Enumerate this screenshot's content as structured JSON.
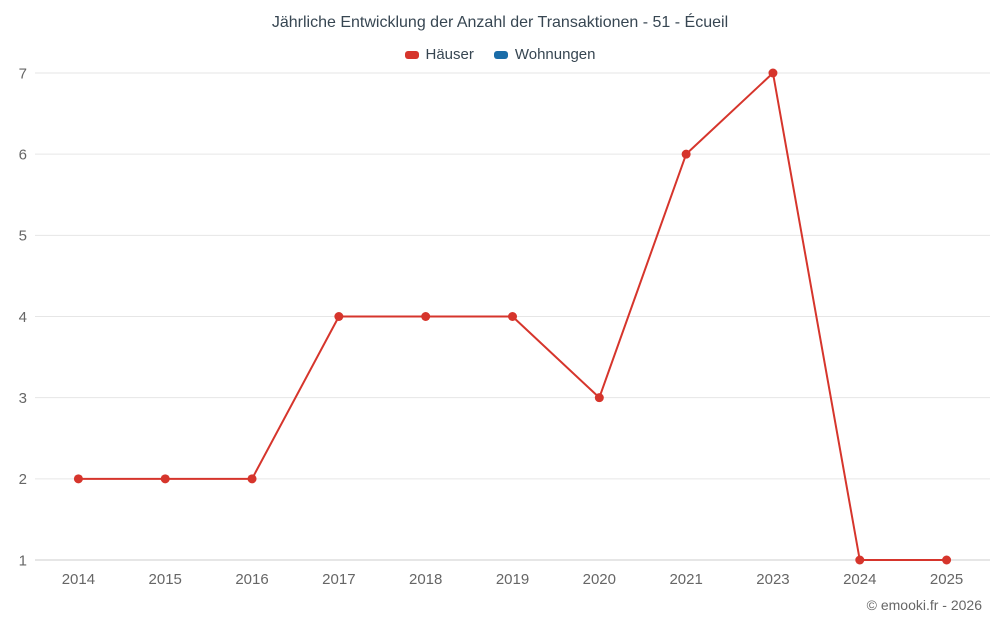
{
  "title": "Jährliche Entwicklung der Anzahl der Transaktionen - 51 - Écueil",
  "footer": "© emooki.fr - 2026",
  "colors": {
    "houses": "#d6352c",
    "apartments": "#1a6ca8",
    "grid": "#e6e6e6",
    "axis_line": "#cccccc",
    "tick_text": "#666666",
    "title_text": "#374652"
  },
  "chart_data": {
    "type": "line",
    "title": "Jährliche Entwicklung der Anzahl der Transaktionen - 51 - Écueil",
    "categories": [
      "2014",
      "2015",
      "2016",
      "2017",
      "2018",
      "2019",
      "2020",
      "2021",
      "2023",
      "2024",
      "2025"
    ],
    "series": [
      {
        "name": "Häuser",
        "color": "#d6352c",
        "values": [
          2,
          2,
          2,
          4,
          4,
          4,
          3,
          6,
          7,
          1,
          1
        ]
      },
      {
        "name": "Wohnungen",
        "color": "#1a6ca8",
        "values": []
      }
    ],
    "xlabel": "",
    "ylabel": "",
    "ylim": [
      1,
      7
    ],
    "yticks": [
      1,
      2,
      3,
      4,
      5,
      6,
      7
    ],
    "grid": true,
    "legend_position": "top",
    "marker": "circle"
  }
}
